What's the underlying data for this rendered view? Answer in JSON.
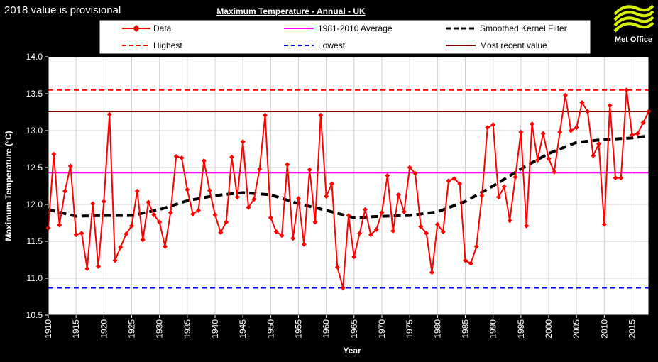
{
  "note": "2018 value is provisional",
  "logo": {
    "text": "Met Office",
    "icon": "met-office-swoosh-icon"
  },
  "chart_data": {
    "type": "line",
    "title": "Maximum Temperature - Annual - UK",
    "xlabel": "Year",
    "ylabel": "Maximum Temperature (°C)",
    "xlim": [
      1910,
      2018
    ],
    "ylim": [
      10.5,
      14.0
    ],
    "yticks": [
      "10.5",
      "11.0",
      "11.5",
      "12.0",
      "12.5",
      "13.0",
      "13.5",
      "14.0"
    ],
    "xticks": [
      "1910",
      "1915",
      "1920",
      "1925",
      "1930",
      "1935",
      "1940",
      "1945",
      "1950",
      "1955",
      "1960",
      "1965",
      "1970",
      "1975",
      "1980",
      "1985",
      "1990",
      "1995",
      "2000",
      "2005",
      "2010",
      "2015"
    ],
    "grid": true,
    "legend_position": "top",
    "legend": {
      "data": "Data",
      "average": "1981-2010 Average",
      "smoothed": "Smoothed Kernel Filter",
      "highest": "Highest",
      "lowest": "Lowest",
      "recent": "Most recent value"
    },
    "colors": {
      "data": "#ff0000",
      "average": "#ff00ff",
      "smoothed": "#000000",
      "highest": "#ff0000",
      "lowest": "#0000ee",
      "recent": "#800000"
    },
    "reference_lines": {
      "average": 12.43,
      "highest": 13.55,
      "lowest": 10.87,
      "recent": 13.26
    },
    "series": [
      {
        "name": "Data",
        "x": [
          1910,
          1911,
          1912,
          1913,
          1914,
          1915,
          1916,
          1917,
          1918,
          1919,
          1920,
          1921,
          1922,
          1923,
          1924,
          1925,
          1926,
          1927,
          1928,
          1929,
          1930,
          1931,
          1932,
          1933,
          1934,
          1935,
          1936,
          1937,
          1938,
          1939,
          1940,
          1941,
          1942,
          1943,
          1944,
          1945,
          1946,
          1947,
          1948,
          1949,
          1950,
          1951,
          1952,
          1953,
          1954,
          1955,
          1956,
          1957,
          1958,
          1959,
          1960,
          1961,
          1962,
          1963,
          1964,
          1965,
          1966,
          1967,
          1968,
          1969,
          1970,
          1971,
          1972,
          1973,
          1974,
          1975,
          1976,
          1977,
          1978,
          1979,
          1980,
          1981,
          1982,
          1983,
          1984,
          1985,
          1986,
          1987,
          1988,
          1989,
          1990,
          1991,
          1992,
          1993,
          1994,
          1995,
          1996,
          1997,
          1998,
          1999,
          2000,
          2001,
          2002,
          2003,
          2004,
          2005,
          2006,
          2007,
          2008,
          2009,
          2010,
          2011,
          2012,
          2013,
          2014,
          2015,
          2016,
          2017,
          2018
        ],
        "values": [
          11.68,
          12.68,
          11.72,
          12.18,
          12.52,
          11.59,
          11.61,
          11.13,
          12.01,
          11.16,
          12.04,
          13.22,
          11.24,
          11.42,
          11.6,
          11.71,
          12.18,
          11.52,
          12.03,
          11.86,
          11.76,
          11.43,
          11.89,
          12.65,
          12.63,
          12.2,
          11.87,
          11.92,
          12.59,
          12.19,
          11.86,
          11.62,
          11.76,
          12.64,
          12.1,
          12.85,
          11.96,
          12.07,
          12.48,
          13.21,
          11.82,
          11.63,
          11.58,
          12.54,
          11.54,
          12.08,
          11.46,
          12.47,
          11.76,
          13.21,
          12.11,
          12.28,
          11.15,
          10.87,
          11.85,
          11.29,
          11.61,
          11.93,
          11.59,
          11.66,
          11.89,
          12.39,
          11.64,
          12.13,
          11.9,
          12.5,
          12.42,
          11.7,
          11.61,
          11.08,
          11.73,
          11.63,
          12.32,
          12.35,
          12.28,
          11.24,
          11.2,
          11.43,
          12.12,
          13.04,
          13.08,
          12.1,
          12.24,
          11.78,
          12.37,
          12.98,
          11.71,
          13.09,
          12.6,
          12.96,
          12.62,
          12.44,
          12.98,
          13.48,
          13.0,
          13.04,
          13.38,
          13.26,
          12.66,
          12.82,
          11.73,
          13.34,
          12.36,
          12.36,
          13.55,
          12.94,
          12.96,
          13.11,
          13.26
        ]
      },
      {
        "name": "Smoothed Kernel Filter",
        "x": [
          1910,
          1915,
          1920,
          1925,
          1930,
          1935,
          1940,
          1945,
          1950,
          1955,
          1960,
          1965,
          1970,
          1975,
          1980,
          1985,
          1990,
          1995,
          2000,
          2005,
          2010,
          2015,
          2018
        ],
        "values": [
          11.93,
          11.84,
          11.85,
          11.85,
          11.93,
          12.05,
          12.12,
          12.16,
          12.13,
          12.01,
          11.92,
          11.82,
          11.84,
          11.85,
          11.9,
          12.04,
          12.25,
          12.48,
          12.69,
          12.84,
          12.88,
          12.9,
          12.93
        ]
      }
    ]
  }
}
